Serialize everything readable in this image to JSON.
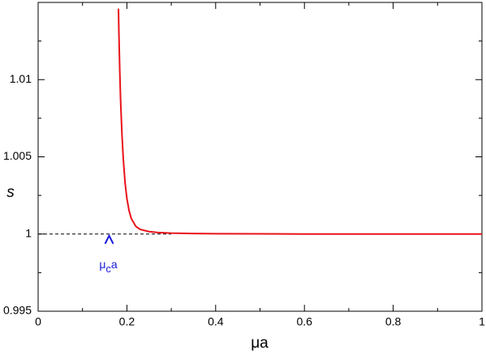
{
  "chart_data": {
    "type": "line",
    "x_label": "μa",
    "y_label": "s",
    "xlim": [
      0,
      1
    ],
    "ylim": [
      0.995,
      1.015
    ],
    "xticks": [
      0,
      0.2,
      0.4,
      0.6,
      0.8,
      1
    ],
    "yticks": [
      0.995,
      1,
      1.005,
      1.01
    ],
    "reference_line": {
      "y": 1,
      "xlim": [
        0,
        0.3
      ],
      "color": "#000000"
    },
    "series": [
      {
        "color": "#e8141a",
        "x": [
          0.181,
          0.182,
          0.184,
          0.186,
          0.189,
          0.192,
          0.196,
          0.2,
          0.205,
          0.21,
          0.22,
          0.23,
          0.25,
          0.27,
          0.3,
          0.35,
          0.4,
          0.5,
          0.6,
          0.8,
          1.0
        ],
        "values": [
          1.0146,
          1.013,
          1.0105,
          1.0085,
          1.0064,
          1.0048,
          1.0033,
          1.0023,
          1.0015,
          1.001,
          1.0005,
          1.0003,
          1.00016,
          1.0001,
          1.00006,
          1.00003,
          1.00002,
          1.00001,
          1.0,
          1.0,
          1.0
        ]
      }
    ],
    "annotation": {
      "x": 0.16,
      "text": "μ",
      "subscript": "c",
      "tail": "a",
      "color": "#1a1adc"
    }
  }
}
